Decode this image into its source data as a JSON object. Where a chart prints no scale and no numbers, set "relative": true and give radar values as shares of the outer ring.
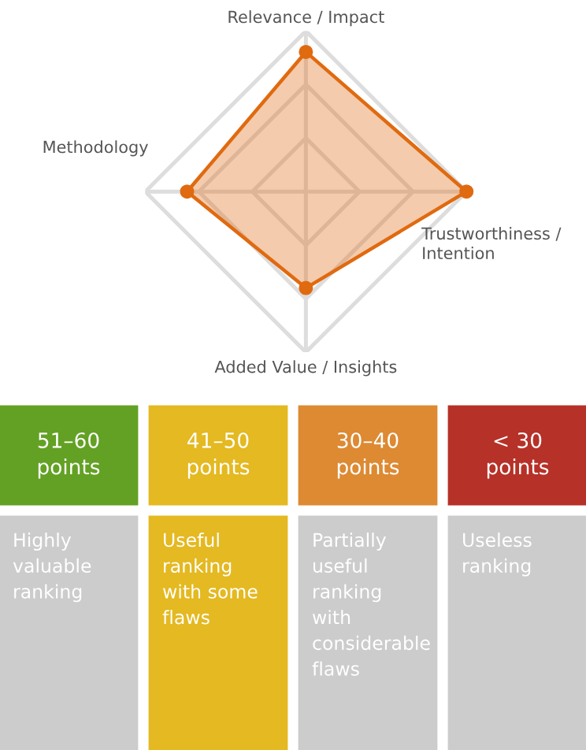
{
  "chart_data": [
    {
      "type": "radar",
      "relative": true,
      "grid": true,
      "marker": "circle",
      "categories": [
        "Relevance / Impact",
        "Trustworthiness /\nIntention",
        "Added Value / Insights",
        "Methodology"
      ],
      "series": [
        {
          "color": "#e06a10",
          "values": [
            0.87,
            1,
            0.6,
            0.74
          ]
        }
      ]
    },
    {
      "type": "other",
      "categories": [
        "51–60\npoints",
        "41–50\npoints",
        "30–40\npoints",
        "< 30\npoints"
      ],
      "colors": [
        "#63a124",
        "#e4b921",
        "#dd8a33",
        "#b63128",
        "#cccccc",
        "#e4b921",
        "#cccccc",
        "#cccccc"
      ],
      "annotations": [
        "Highly\nvaluable\nranking",
        "Useful\nranking\nwith some\nflaws",
        "Partially\nuseful\nranking\nwith\nconsiderable\nflaws",
        "Useless\nranking"
      ]
    }
  ]
}
